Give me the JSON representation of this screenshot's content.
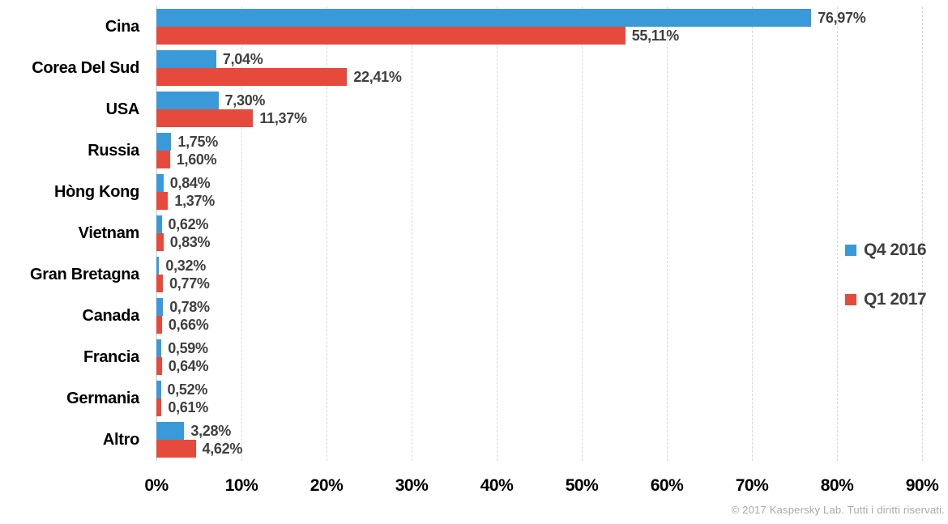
{
  "chart_data": {
    "type": "bar",
    "orientation": "horizontal",
    "title": "",
    "categories": [
      "Cina",
      "Corea Del Sud",
      "USA",
      "Russia",
      "Hòng Kong",
      "Vietnam",
      "Gran Bretagna",
      "Canada",
      "Francia",
      "Germania",
      "Altro"
    ],
    "series": [
      {
        "name": "Q4 2016",
        "color": "#3a99d8",
        "values": [
          76.97,
          7.04,
          7.3,
          1.75,
          0.84,
          0.62,
          0.32,
          0.78,
          0.59,
          0.52,
          3.28
        ],
        "labels": [
          "76,97%",
          "7,04%",
          "7,30%",
          "1,75%",
          "0,84%",
          "0,62%",
          "0,32%",
          "0,78%",
          "0,59%",
          "0,52%",
          "3,28%"
        ]
      },
      {
        "name": "Q1 2017",
        "color": "#e64a3d",
        "values": [
          55.11,
          22.41,
          11.37,
          1.6,
          1.37,
          0.83,
          0.77,
          0.66,
          0.64,
          0.61,
          4.62
        ],
        "labels": [
          "55,11%",
          "22,41%",
          "11,37%",
          "1,60%",
          "1,37%",
          "0,83%",
          "0,77%",
          "0,66%",
          "0,64%",
          "0,61%",
          "4,62%"
        ]
      }
    ],
    "x_axis": {
      "min": 0,
      "max": 90,
      "tick_step": 10,
      "tick_labels": [
        "0%",
        "10%",
        "20%",
        "30%",
        "40%",
        "50%",
        "60%",
        "70%",
        "80%",
        "90%"
      ],
      "grid": "dashed-vertical"
    },
    "legend_position": "right-middle",
    "value_labels_color": "#404040",
    "background": "#ffffff"
  },
  "footer": {
    "copyright": "© 2017 Kaspersky Lab. Tutti i diritti riservati."
  }
}
